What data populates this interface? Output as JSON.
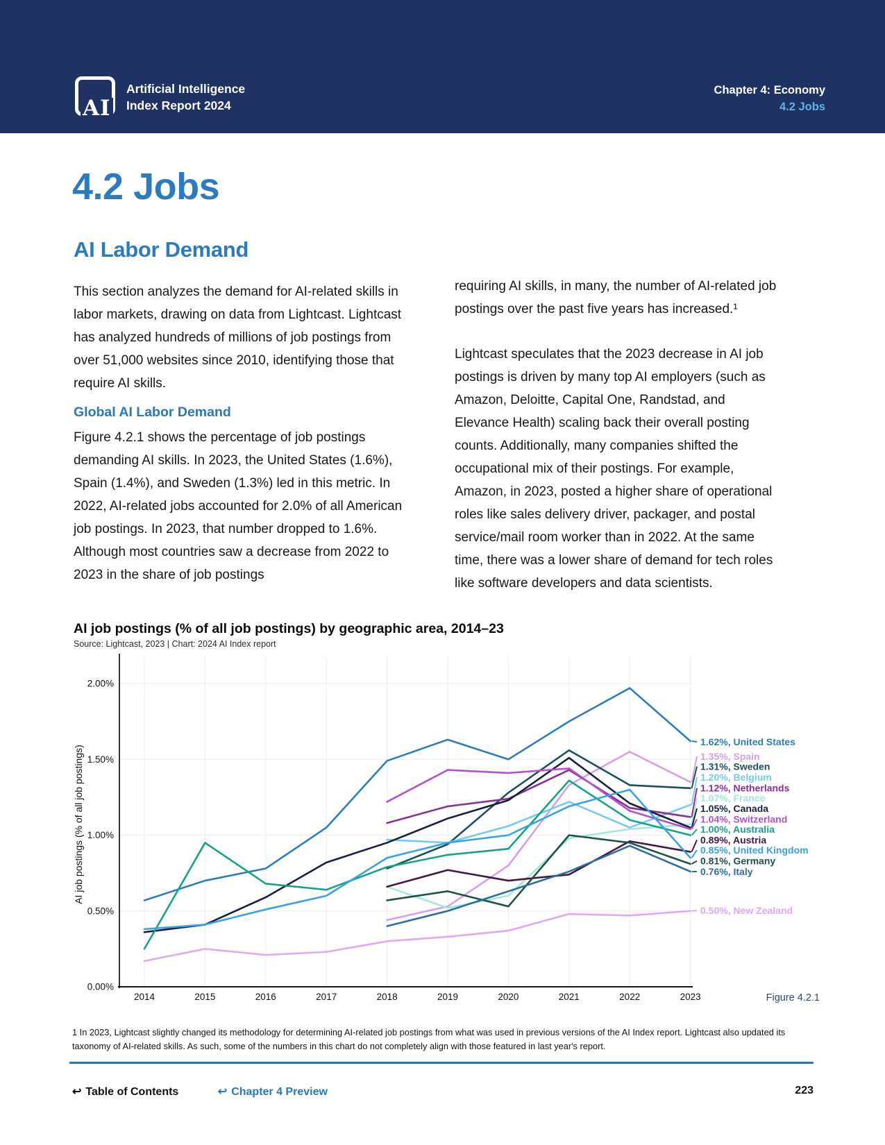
{
  "header": {
    "logo_text": "AI",
    "brand_line1": "Artificial Intelligence",
    "brand_line2": "Index Report 2024",
    "chapter": "Chapter 4: Economy",
    "section": "4.2 Jobs",
    "bg_color": "#1E3263",
    "accent_color": "#5FB2E8"
  },
  "page": {
    "title": "4.2 Jobs",
    "section_heading": "AI Labor Demand",
    "accent_color": "#2B7CBE"
  },
  "left_column": {
    "para1": "This section analyzes the demand for AI-related skills in labor markets, drawing on data from Lightcast. Lightcast has analyzed hundreds of millions of job postings from over 51,000 websites since 2010, identifying those that require AI skills.",
    "subheading": "Global AI Labor Demand",
    "para2": "Figure 4.2.1 shows the percentage of job postings demanding AI skills. In 2023, the United States (1.6%), Spain (1.4%), and Sweden (1.3%) led in this metric. In 2022, AI-related jobs accounted for 2.0% of all American job postings. In 2023, that number dropped to 1.6%. Although most countries saw a decrease from 2022 to 2023 in the share of job postings"
  },
  "right_column": {
    "para1": "requiring AI skills, in many, the number of AI-related job postings over the past five years has increased.¹",
    "para2": "Lightcast speculates that the 2023 decrease in AI job postings is driven by many top AI employers (such as Amazon, Deloitte, Capital One, Randstad, and Elevance Health) scaling back their overall posting counts. Additionally, many companies shifted the occupational mix of their postings. For example, Amazon, in 2023, posted a higher share of operational roles like sales delivery driver, packager, and postal service/mail room worker than in 2022. At the same time, there was a lower share of demand for tech roles like software developers and data scientists."
  },
  "chart_data": {
    "type": "line",
    "title": "AI job postings (% of all job postings) by geographic area, 2014–23",
    "source": "Source: Lightcast, 2023 | Chart: 2024 AI Index report",
    "ylabel": "AI job postings (% of all job postings)",
    "x": [
      2014,
      2015,
      2016,
      2017,
      2018,
      2019,
      2020,
      2021,
      2022,
      2023
    ],
    "ylim": [
      0,
      2.2
    ],
    "ytick_values": [
      0,
      0.5,
      1.0,
      1.5,
      2.0
    ],
    "ytick_labels": [
      "0.00%",
      "0.50%",
      "1.00%",
      "1.50%",
      "2.00%"
    ],
    "grid": true,
    "legend_position": "right-end-labels",
    "series": [
      {
        "name": "United States",
        "color": "#2D7DBA",
        "end_label": "1.62%, United States",
        "values": [
          0.57,
          0.7,
          0.78,
          1.05,
          1.49,
          1.63,
          1.5,
          1.75,
          1.97,
          1.62
        ]
      },
      {
        "name": "Spain",
        "color": "#D6A0E8",
        "end_label": "1.35%, Spain",
        "values": [
          null,
          null,
          null,
          null,
          0.44,
          0.53,
          0.8,
          1.33,
          1.55,
          1.35
        ]
      },
      {
        "name": "Sweden",
        "color": "#1B505E",
        "end_label": "1.31%, Sweden",
        "values": [
          null,
          null,
          null,
          null,
          0.78,
          0.94,
          1.28,
          1.56,
          1.33,
          1.31
        ]
      },
      {
        "name": "Belgium",
        "color": "#74CBEF",
        "end_label": "1.20%, Belgium",
        "values": [
          null,
          null,
          null,
          null,
          0.97,
          0.95,
          1.06,
          1.22,
          1.05,
          1.2
        ]
      },
      {
        "name": "Netherlands",
        "color": "#8A2F96",
        "end_label": "1.12%, Netherlands",
        "values": [
          null,
          null,
          null,
          null,
          1.08,
          1.19,
          1.24,
          1.43,
          1.18,
          1.12
        ]
      },
      {
        "name": "France",
        "color": "#A3E8D9",
        "end_label": "1.07%, France",
        "values": [
          null,
          null,
          null,
          null,
          0.66,
          0.52,
          0.6,
          0.98,
          1.04,
          1.07
        ]
      },
      {
        "name": "Canada",
        "color": "#191F3E",
        "end_label": "1.05%, Canada",
        "values": [
          0.36,
          0.41,
          0.59,
          0.82,
          0.95,
          1.11,
          1.23,
          1.51,
          1.21,
          1.05
        ]
      },
      {
        "name": "Switzerland",
        "color": "#B350CB",
        "end_label": "1.04%, Switzerland",
        "values": [
          null,
          null,
          null,
          null,
          1.22,
          1.43,
          1.41,
          1.44,
          1.16,
          1.04
        ]
      },
      {
        "name": "Australia",
        "color": "#17A287",
        "end_label": "1.00%, Australia",
        "values": [
          0.25,
          0.95,
          0.68,
          0.64,
          0.79,
          0.87,
          0.91,
          1.36,
          1.1,
          1.0
        ]
      },
      {
        "name": "Austria",
        "color": "#451741",
        "end_label": "0.89%, Austria",
        "values": [
          null,
          null,
          null,
          null,
          0.66,
          0.77,
          0.7,
          0.74,
          0.96,
          0.89
        ]
      },
      {
        "name": "United Kingdom",
        "color": "#39A1E6",
        "end_label": "0.85%, United Kingdom",
        "values": [
          0.38,
          0.41,
          0.51,
          0.6,
          0.85,
          0.95,
          1.0,
          1.19,
          1.3,
          0.85
        ]
      },
      {
        "name": "Germany",
        "color": "#20514A",
        "end_label": "0.81%, Germany",
        "values": [
          null,
          null,
          null,
          null,
          0.57,
          0.63,
          0.53,
          1.0,
          0.95,
          0.81
        ]
      },
      {
        "name": "Italy",
        "color": "#2D6F9C",
        "end_label": "0.76%, Italy",
        "values": [
          null,
          null,
          null,
          null,
          0.4,
          0.5,
          0.63,
          0.76,
          0.93,
          0.76
        ]
      },
      {
        "name": "New Zealand",
        "color": "#DCAAF4",
        "end_label": "0.50%, New Zealand",
        "values": [
          0.17,
          0.25,
          0.21,
          0.23,
          0.3,
          0.33,
          0.37,
          0.48,
          0.47,
          0.5
        ]
      }
    ],
    "label_slots": [
      131,
      152,
      166.5,
      182,
      197.5,
      212,
      227,
      242.5,
      257,
      272.5,
      287,
      302.5,
      318,
      374
    ]
  },
  "figure_caption": "Figure 4.2.1",
  "footnote": "1 In 2023, Lightcast slightly changed its methodology for determining AI-related job postings from what was used in previous versions of the AI Index report. Lightcast also updated its taxonomy of AI-related skills. As such, some of the numbers in this chart do not completely align with those featured in last year's report.",
  "footer": {
    "toc": "Table of Contents",
    "preview": "Chapter 4 Preview",
    "page_number": "223"
  }
}
